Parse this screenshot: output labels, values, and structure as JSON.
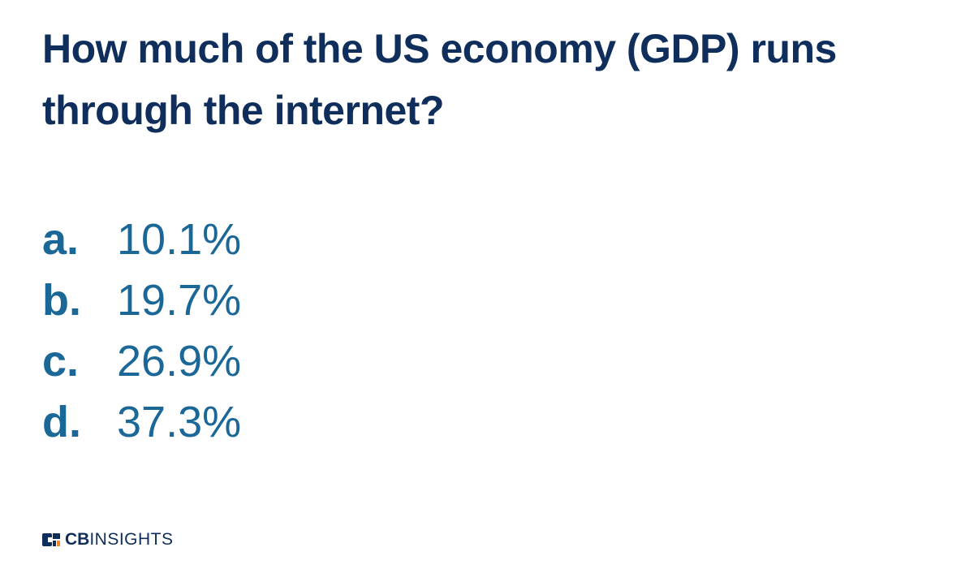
{
  "title": "How much of the US economy (GDP) runs through the internet?",
  "options": [
    {
      "letter": "a.",
      "text": "10.1%"
    },
    {
      "letter": "b.",
      "text": "19.7%"
    },
    {
      "letter": "c.",
      "text": "26.9%"
    },
    {
      "letter": "d.",
      "text": "37.3%"
    }
  ],
  "logo": {
    "bold": "CB",
    "light": "INSIGHTS"
  }
}
